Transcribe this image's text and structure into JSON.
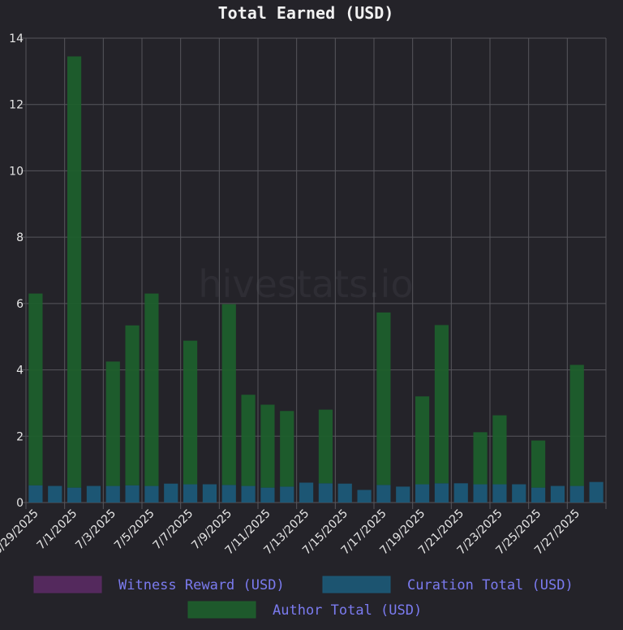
{
  "chart_data": {
    "type": "bar",
    "stacked": true,
    "title": "Total Earned (USD)",
    "watermark": "hivestats.io",
    "ylim": [
      0,
      14
    ],
    "yticks": [
      0,
      2,
      4,
      6,
      8,
      10,
      12,
      14
    ],
    "grid": true,
    "legend_position": "bottom",
    "categories": [
      "6/29/2025",
      "6/30/2025",
      "7/1/2025",
      "7/2/2025",
      "7/3/2025",
      "7/4/2025",
      "7/5/2025",
      "7/6/2025",
      "7/7/2025",
      "7/8/2025",
      "7/9/2025",
      "7/10/2025",
      "7/11/2025",
      "7/12/2025",
      "7/13/2025",
      "7/14/2025",
      "7/15/2025",
      "7/16/2025",
      "7/17/2025",
      "7/18/2025",
      "7/19/2025",
      "7/20/2025",
      "7/21/2025",
      "7/22/2025",
      "7/23/2025",
      "7/24/2025",
      "7/25/2025",
      "7/26/2025",
      "7/27/2025",
      "7/28/2025"
    ],
    "shown_tick_labels": [
      "6/29/2025",
      "7/1/2025",
      "7/3/2025",
      "7/5/2025",
      "7/7/2025",
      "7/9/2025",
      "7/11/2025",
      "7/13/2025",
      "7/15/2025",
      "7/17/2025",
      "7/19/2025",
      "7/21/2025",
      "7/23/2025",
      "7/25/2025",
      "7/27/2025"
    ],
    "series": [
      {
        "name": "Witness Reward (USD)",
        "color": "#5a2a63",
        "values": [
          0,
          0,
          0,
          0,
          0,
          0,
          0,
          0,
          0,
          0,
          0,
          0,
          0,
          0,
          0,
          0,
          0,
          0,
          0,
          0,
          0,
          0,
          0,
          0,
          0,
          0,
          0,
          0,
          0,
          0
        ]
      },
      {
        "name": "Curation Total (USD)",
        "color": "#1c5a78",
        "values": [
          0.52,
          0.5,
          0.45,
          0.5,
          0.5,
          0.52,
          0.5,
          0.57,
          0.55,
          0.55,
          0.53,
          0.5,
          0.45,
          0.48,
          0.6,
          0.58,
          0.57,
          0.38,
          0.53,
          0.48,
          0.55,
          0.58,
          0.58,
          0.55,
          0.55,
          0.55,
          0.45,
          0.5,
          0.5,
          0.62
        ]
      },
      {
        "name": "Author Total (USD)",
        "color": "#1e5f2c",
        "values": [
          5.78,
          0,
          13.0,
          0,
          3.75,
          4.82,
          5.8,
          0,
          4.33,
          0,
          5.45,
          2.75,
          2.5,
          2.28,
          0,
          2.22,
          0,
          0,
          5.2,
          0,
          2.65,
          4.77,
          0,
          1.57,
          2.08,
          0,
          1.42,
          0,
          3.65,
          0
        ]
      }
    ]
  }
}
